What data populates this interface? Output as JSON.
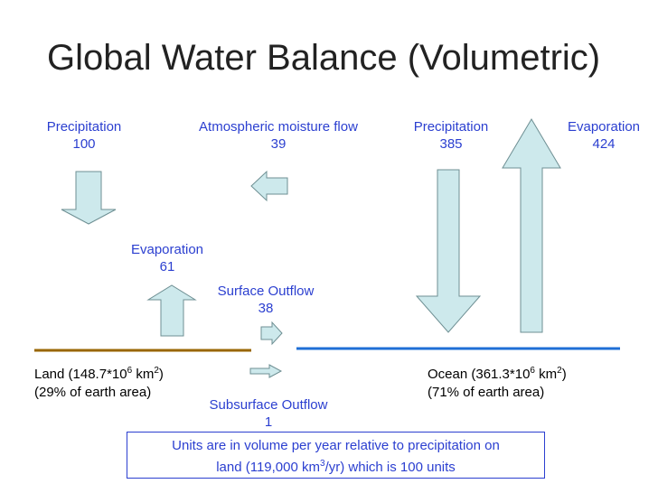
{
  "title": "Global Water Balance (Volumetric)",
  "labels": {
    "precip_land_name": "Precipitation",
    "precip_land_value": "100",
    "atm_flow_name": "Atmospheric moisture flow",
    "atm_flow_value": "39",
    "precip_ocean_name": "Precipitation",
    "precip_ocean_value": "385",
    "evap_ocean_name": "Evaporation",
    "evap_ocean_value": "424",
    "evap_land_name": "Evaporation",
    "evap_land_value": "61",
    "surface_outflow_name": "Surface Outflow",
    "surface_outflow_value": "38",
    "subsurface_outflow_name": "Subsurface Outflow",
    "subsurface_outflow_value": "1"
  },
  "land": {
    "name_prefix": "Land (148.7*10",
    "exp": "6",
    "unit": " km",
    "unit_exp": "2",
    "close": ")",
    "share": "(29% of earth area)"
  },
  "ocean": {
    "name_prefix": "Ocean (361.3*10",
    "exp": "6",
    "unit": " km",
    "unit_exp": "2",
    "close": ")",
    "share": "(71% of earth area)"
  },
  "note": {
    "line1": "Units are in volume per year relative to precipitation on",
    "line2_prefix": "land (119,000 km",
    "line2_exp": "3",
    "line2_suffix": "/yr) which is 100 units"
  },
  "colors": {
    "arrow_fill": "#cde9ec",
    "arrow_stroke": "#6e8f93",
    "land_line": "#996600",
    "ocean_line": "#1f6fd6",
    "label_blue": "#2b3fd0"
  },
  "icons": {
    "precip_land": "arrow-down",
    "atm_flow": "arrow-left",
    "evap_land": "arrow-up",
    "surface_outflow": "arrow-right",
    "subsurface_outflow": "arrow-right",
    "precip_ocean": "arrow-down",
    "evap_ocean": "arrow-up"
  }
}
